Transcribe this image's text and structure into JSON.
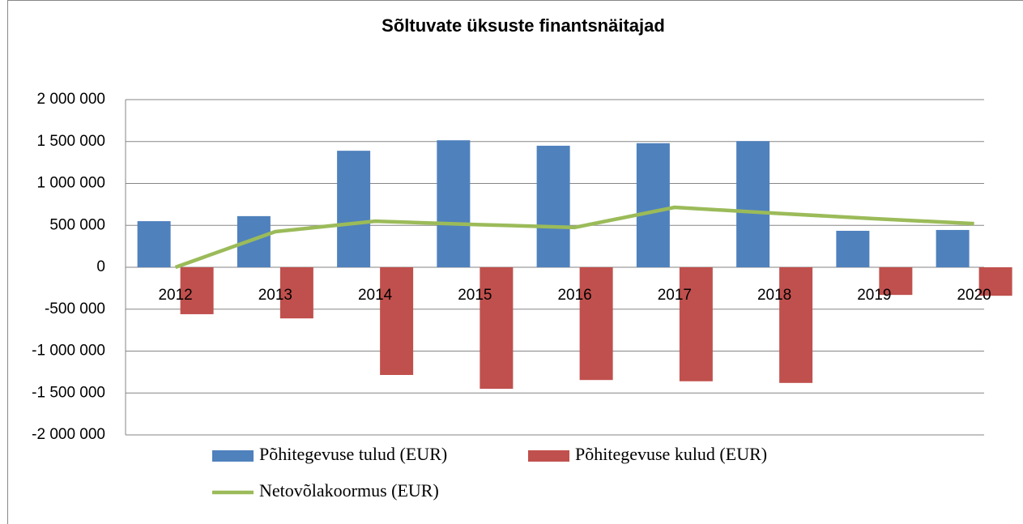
{
  "chart_data": {
    "type": "bar",
    "title": "Sõltuvate üksuste finantsnäitajad",
    "categories": [
      "2012",
      "2013",
      "2014",
      "2015",
      "2016",
      "2017",
      "2018",
      "2019",
      "2020"
    ],
    "series": [
      {
        "name": "Põhitegevuse tulud (EUR)",
        "type": "bar",
        "color": "#4f81bd",
        "values": [
          550000,
          610000,
          1390000,
          1515000,
          1450000,
          1480000,
          1505000,
          435000,
          445000
        ]
      },
      {
        "name": "Põhitegevuse kulud (EUR)",
        "type": "bar",
        "color": "#c0504d",
        "values": [
          -560000,
          -610000,
          -1285000,
          -1450000,
          -1345000,
          -1360000,
          -1380000,
          -330000,
          -340000
        ]
      },
      {
        "name": "Netovõlakoormus (EUR)",
        "type": "line",
        "color": "#9bbb59",
        "values": [
          0,
          425000,
          550000,
          510000,
          475000,
          715000,
          645000,
          580000,
          520000
        ]
      }
    ],
    "ylim": [
      -2000000,
      2000000
    ],
    "yticks": [
      {
        "value": -2000000,
        "label": "-2 000 000"
      },
      {
        "value": -1500000,
        "label": "-1 500 000"
      },
      {
        "value": -1000000,
        "label": "-1 000 000"
      },
      {
        "value": -500000,
        "label": "-500 000"
      },
      0,
      {
        "value": 500000,
        "label": "500 000"
      },
      {
        "value": 1000000,
        "label": "1 000 000"
      },
      {
        "value": 1500000,
        "label": "1 500 000"
      },
      {
        "value": 2000000,
        "label": "2 000 000"
      }
    ],
    "grid": true,
    "legend": "bottom"
  }
}
